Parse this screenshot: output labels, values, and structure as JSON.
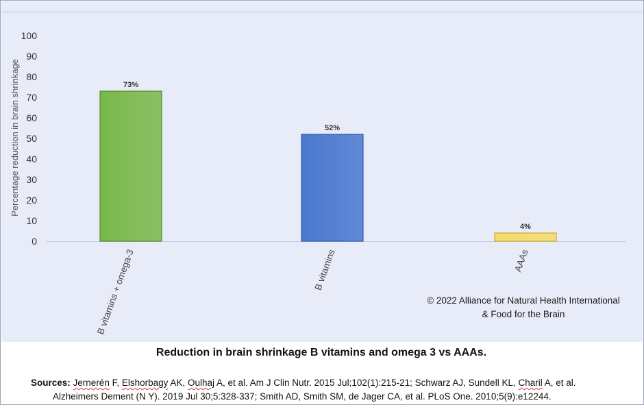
{
  "chart_data": {
    "type": "bar",
    "categories": [
      "B vitamins + omega-3",
      "B vitamins",
      "AAAs"
    ],
    "values": [
      73,
      52,
      4
    ],
    "data_labels": [
      "73%",
      "52%",
      "4%"
    ],
    "bar_colors": [
      "#7ab84a",
      "#4a78d0",
      "#f4dc6a"
    ],
    "bar_edge_colors": [
      "#4f8a2a",
      "#2d5aa8",
      "#c9ab2e"
    ],
    "title": "",
    "xlabel": "",
    "ylabel": "Percentage reduction in brain shrinkage",
    "ylim": [
      0,
      100
    ],
    "yticks": [
      "0",
      "10",
      "20",
      "30",
      "40",
      "50",
      "60",
      "70",
      "80",
      "90",
      "100"
    ],
    "grid": false,
    "legend": "none"
  },
  "copyright": {
    "line1": "© 2022 Alliance for Natural Health International",
    "line2": "& Food for the Brain"
  },
  "caption": "Reduction in brain shrinkage B vitamins and omega 3 vs AAAs.",
  "sources": {
    "label": "Sources:",
    "line1_parts": [
      {
        "text": " ",
        "wavy": false
      },
      {
        "text": "Jernerén",
        "wavy": true
      },
      {
        "text": " F, ",
        "wavy": false
      },
      {
        "text": "Elshorbagy",
        "wavy": true
      },
      {
        "text": " AK, ",
        "wavy": false
      },
      {
        "text": "Oulhaj",
        "wavy": true
      },
      {
        "text": " A, et al. Am J Clin Nutr. 2015 Jul;102(1):215-21; Schwarz AJ, Sundell KL, ",
        "wavy": false
      },
      {
        "text": "Charil",
        "wavy": true
      },
      {
        "text": " A, et al.",
        "wavy": false
      }
    ],
    "line2": "Alzheimers Dement (N Y). 2019 Jul 30;5:328-337; Smith AD, Smith SM, de Jager CA, et al. PLoS One. 2010;5(9):e12244."
  }
}
